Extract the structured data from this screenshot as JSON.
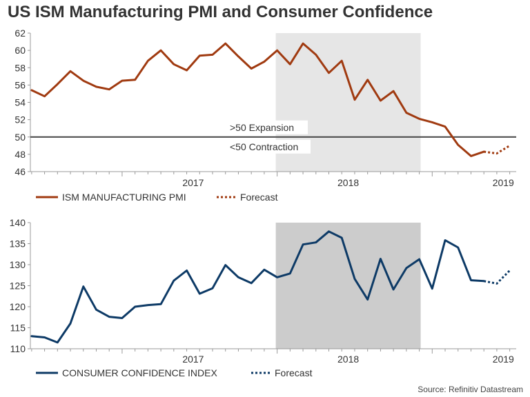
{
  "title": "US ISM Manufacturing PMI and Consumer Confidence",
  "source": "Source: Refinitiv Datastream",
  "colors": {
    "pmi": "#a03a10",
    "cci": "#0d3a66",
    "shade_top": "#e6e6e6",
    "shade_bottom": "#cccccc",
    "threshold": "#444444"
  },
  "chart_data": [
    {
      "type": "line",
      "ylim": [
        46,
        62
      ],
      "yticks": [
        "46",
        "48",
        "50",
        "52",
        "54",
        "56",
        "58",
        "60",
        "62"
      ],
      "xlabels": [
        "2017",
        "2018",
        "2019"
      ],
      "shaded_period": [
        "2018-01",
        "2018-12"
      ],
      "threshold": {
        "value": 50,
        "label_above": ">50 Expansion",
        "label_below": "<50 Contraction"
      },
      "legend": [
        "ISM MANUFACTURING PMI",
        "Forecast"
      ],
      "series": [
        {
          "name": "ISM MANUFACTURING PMI",
          "x": [
            "2016-06",
            "2016-07",
            "2016-08",
            "2016-09",
            "2016-10",
            "2016-11",
            "2016-12",
            "2017-01",
            "2017-02",
            "2017-03",
            "2017-04",
            "2017-05",
            "2017-06",
            "2017-07",
            "2017-08",
            "2017-09",
            "2017-10",
            "2017-11",
            "2017-12",
            "2018-01",
            "2018-02",
            "2018-03",
            "2018-04",
            "2018-05",
            "2018-06",
            "2018-07",
            "2018-08",
            "2018-09",
            "2018-10",
            "2018-11",
            "2018-12",
            "2019-01",
            "2019-02",
            "2019-03",
            "2019-04",
            "2019-05"
          ],
          "values": [
            55.4,
            54.7,
            56.1,
            57.6,
            56.5,
            55.8,
            55.5,
            56.5,
            56.6,
            58.8,
            60.0,
            58.4,
            57.7,
            59.4,
            59.5,
            60.8,
            59.3,
            57.9,
            58.7,
            60.0,
            58.4,
            60.8,
            59.5,
            57.4,
            58.8,
            54.3,
            56.6,
            54.2,
            55.3,
            52.8,
            52.1,
            51.7,
            51.2,
            49.1,
            47.8,
            48.3
          ]
        },
        {
          "name": "Forecast",
          "x": [
            "2019-05",
            "2019-06",
            "2019-07"
          ],
          "values": [
            48.3,
            48.1,
            49.0
          ]
        }
      ]
    },
    {
      "type": "line",
      "ylim": [
        110,
        140
      ],
      "yticks": [
        "110",
        "115",
        "120",
        "125",
        "130",
        "135",
        "140"
      ],
      "xlabels": [
        "2017",
        "2018",
        "2019"
      ],
      "shaded_period": [
        "2018-01",
        "2018-12"
      ],
      "legend": [
        "CONSUMER CONFIDENCE INDEX",
        "Forecast"
      ],
      "series": [
        {
          "name": "CONSUMER CONFIDENCE INDEX",
          "x": [
            "2016-06",
            "2016-07",
            "2016-08",
            "2016-09",
            "2016-10",
            "2016-11",
            "2016-12",
            "2017-01",
            "2017-02",
            "2017-03",
            "2017-04",
            "2017-05",
            "2017-06",
            "2017-07",
            "2017-08",
            "2017-09",
            "2017-10",
            "2017-11",
            "2017-12",
            "2018-01",
            "2018-02",
            "2018-03",
            "2018-04",
            "2018-05",
            "2018-06",
            "2018-07",
            "2018-08",
            "2018-09",
            "2018-10",
            "2018-11",
            "2018-12",
            "2019-01",
            "2019-02",
            "2019-03",
            "2019-04",
            "2019-05"
          ],
          "values": [
            113.0,
            112.7,
            111.5,
            116.0,
            124.8,
            119.3,
            117.6,
            117.3,
            120.0,
            120.4,
            120.6,
            126.2,
            128.6,
            123.1,
            124.4,
            129.9,
            127.0,
            125.6,
            128.8,
            127.0,
            127.9,
            134.8,
            135.3,
            137.9,
            136.4,
            126.6,
            121.7,
            131.4,
            124.1,
            129.2,
            131.3,
            124.3,
            135.8,
            134.1,
            126.3,
            126.1
          ]
        },
        {
          "name": "Forecast",
          "x": [
            "2019-05",
            "2019-06",
            "2019-07"
          ],
          "values": [
            126.1,
            125.5,
            128.6
          ]
        }
      ]
    }
  ]
}
